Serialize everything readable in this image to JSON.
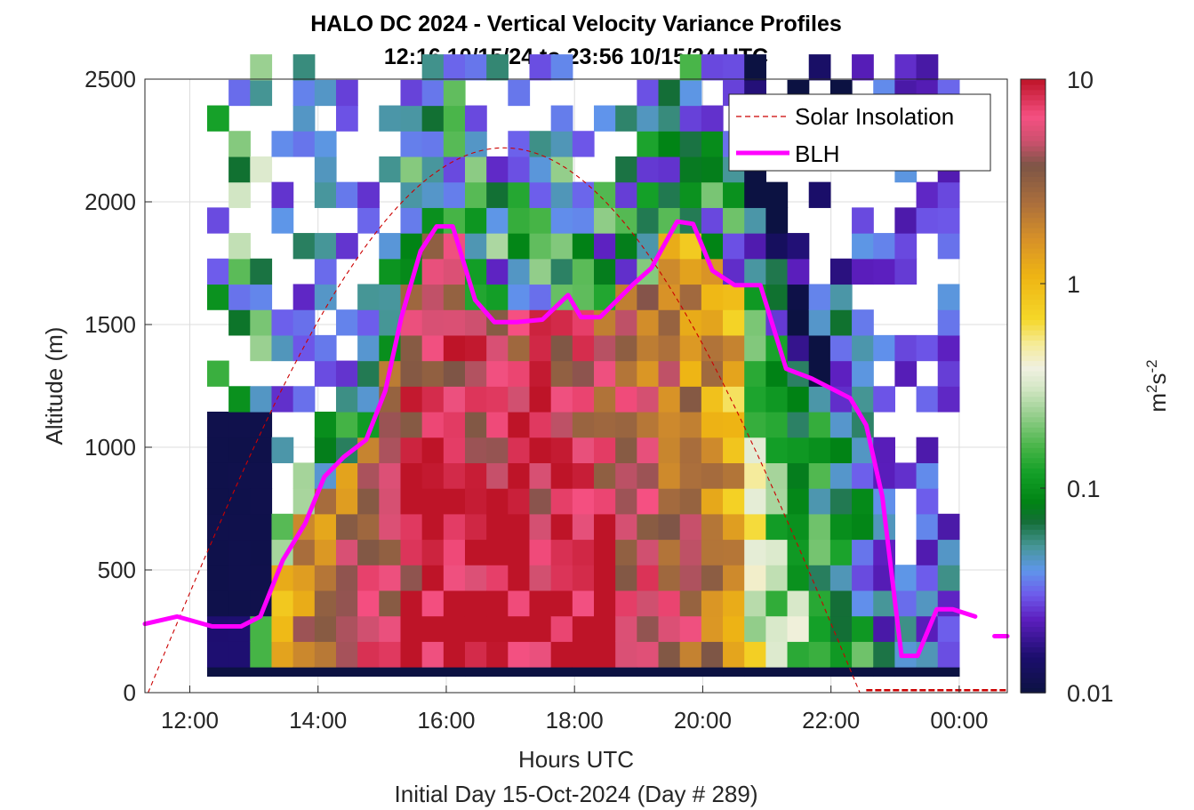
{
  "chart_data": {
    "type": "heatmap",
    "title": "HALO DC 2024 - Vertical Velocity Variance Profiles",
    "subtitle": "12:16 10/15/24 to 23:56 10/15/24  UTC",
    "xlabel": "Hours UTC",
    "xlabel2": "Initial Day 15-Oct-2024 (Day # 289)",
    "ylabel": "Altitude (m)",
    "xlim": [
      11.3,
      24.75
    ],
    "ylim": [
      0,
      2500
    ],
    "grid": true,
    "x_ticks": [
      {
        "value": 12,
        "label": "12:00"
      },
      {
        "value": 14,
        "label": "14:00"
      },
      {
        "value": 16,
        "label": "16:00"
      },
      {
        "value": 18,
        "label": "18:00"
      },
      {
        "value": 20,
        "label": "20:00"
      },
      {
        "value": 22,
        "label": "22:00"
      },
      {
        "value": 24,
        "label": "00:00"
      }
    ],
    "y_ticks": [
      0,
      500,
      1000,
      1500,
      2000,
      2500
    ],
    "y_tick_labels": [
      "0",
      "500",
      "1000",
      "1500",
      "2000",
      "2500"
    ],
    "colorbar": {
      "label_base": "m",
      "label_sup1": "2",
      "label_mid": "s",
      "label_sup2": "-2",
      "scale": "log",
      "range": [
        0.01,
        10
      ],
      "ticks": [
        0.01,
        0.1,
        1,
        10
      ],
      "tick_labels": [
        "0.01",
        "0.1",
        "1",
        "10"
      ]
    },
    "legend": {
      "placement": "top-right",
      "entries": [
        {
          "label": "Solar Insolation",
          "style": "dashed",
          "color": "#cc0000"
        },
        {
          "label": "BLH",
          "style": "solid",
          "color": "#ff00ff"
        }
      ]
    },
    "heatmap_grid": {
      "time_start": 12.27,
      "time_end": 24.0,
      "time_bins": 35,
      "alt_bins": 24,
      "alt_step": 104,
      "alt_base": 105
    },
    "series": [
      {
        "name": "BLH",
        "color": "#ff00ff",
        "x": [
          11.3,
          11.8,
          12.35,
          12.8,
          13.1,
          13.45,
          13.8,
          14.1,
          14.4,
          14.75,
          15.05,
          15.3,
          15.6,
          15.85,
          16.1,
          16.45,
          16.75,
          17.1,
          17.5,
          17.9,
          18.1,
          18.4,
          18.9,
          19.2,
          19.6,
          19.85,
          20.15,
          20.5,
          20.9,
          21.3,
          21.7,
          22.3,
          22.55,
          22.8,
          23.1,
          23.35,
          23.65,
          23.9,
          24.25
        ],
        "y": [
          280,
          310,
          270,
          270,
          310,
          540,
          690,
          880,
          960,
          1030,
          1230,
          1530,
          1800,
          1900,
          1900,
          1600,
          1510,
          1510,
          1520,
          1620,
          1530,
          1530,
          1660,
          1730,
          1920,
          1910,
          1720,
          1660,
          1660,
          1320,
          1280,
          1200,
          1090,
          800,
          150,
          150,
          340,
          340,
          310
        ]
      },
      {
        "name": "BLH",
        "color": "#ff00ff",
        "x": [
          24.55,
          24.75
        ],
        "y": [
          230,
          230
        ]
      },
      {
        "name": "Solar Insolation",
        "color": "#cc0000",
        "curve": "sine",
        "sunrise": 11.35,
        "sunset": 22.45,
        "peak_altitude": 2220,
        "x_tail": [
          22.55,
          24.75
        ],
        "y_tail": [
          10,
          10
        ]
      }
    ]
  }
}
